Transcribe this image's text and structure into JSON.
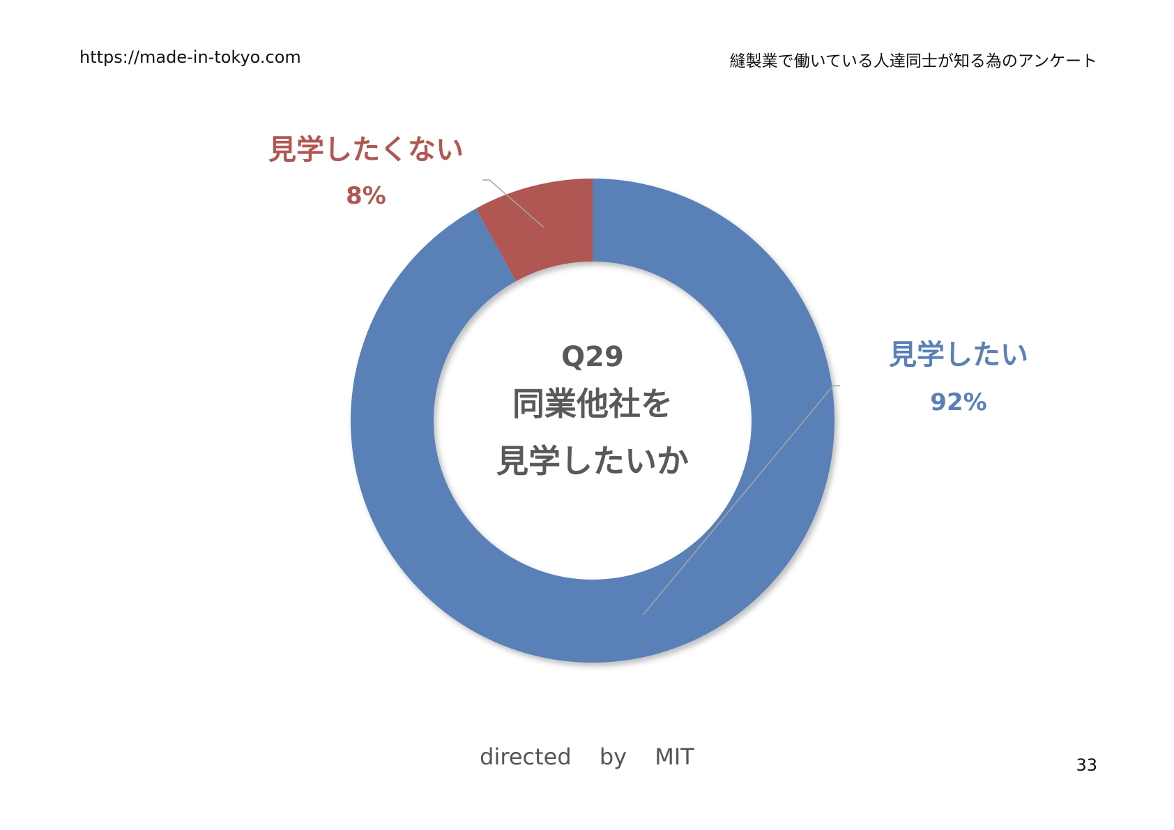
{
  "header": {
    "url": "https://made-in-tokyo.com",
    "title": "縫製業で働いている人達同士が知る為のアンケート"
  },
  "chart_data": {
    "type": "pie",
    "style": "donut",
    "center_text": [
      "Q29",
      "同業他社を",
      "見学したいか"
    ],
    "slices": [
      {
        "label": "見学したい",
        "value": 92,
        "value_label": "92%",
        "color": "#5a80b8"
      },
      {
        "label": "見学したくない",
        "value": 8,
        "value_label": "8%",
        "color": "#b05752"
      }
    ],
    "legend": "none"
  },
  "footer": {
    "credit": "directed by MIT",
    "page_number": "33"
  }
}
